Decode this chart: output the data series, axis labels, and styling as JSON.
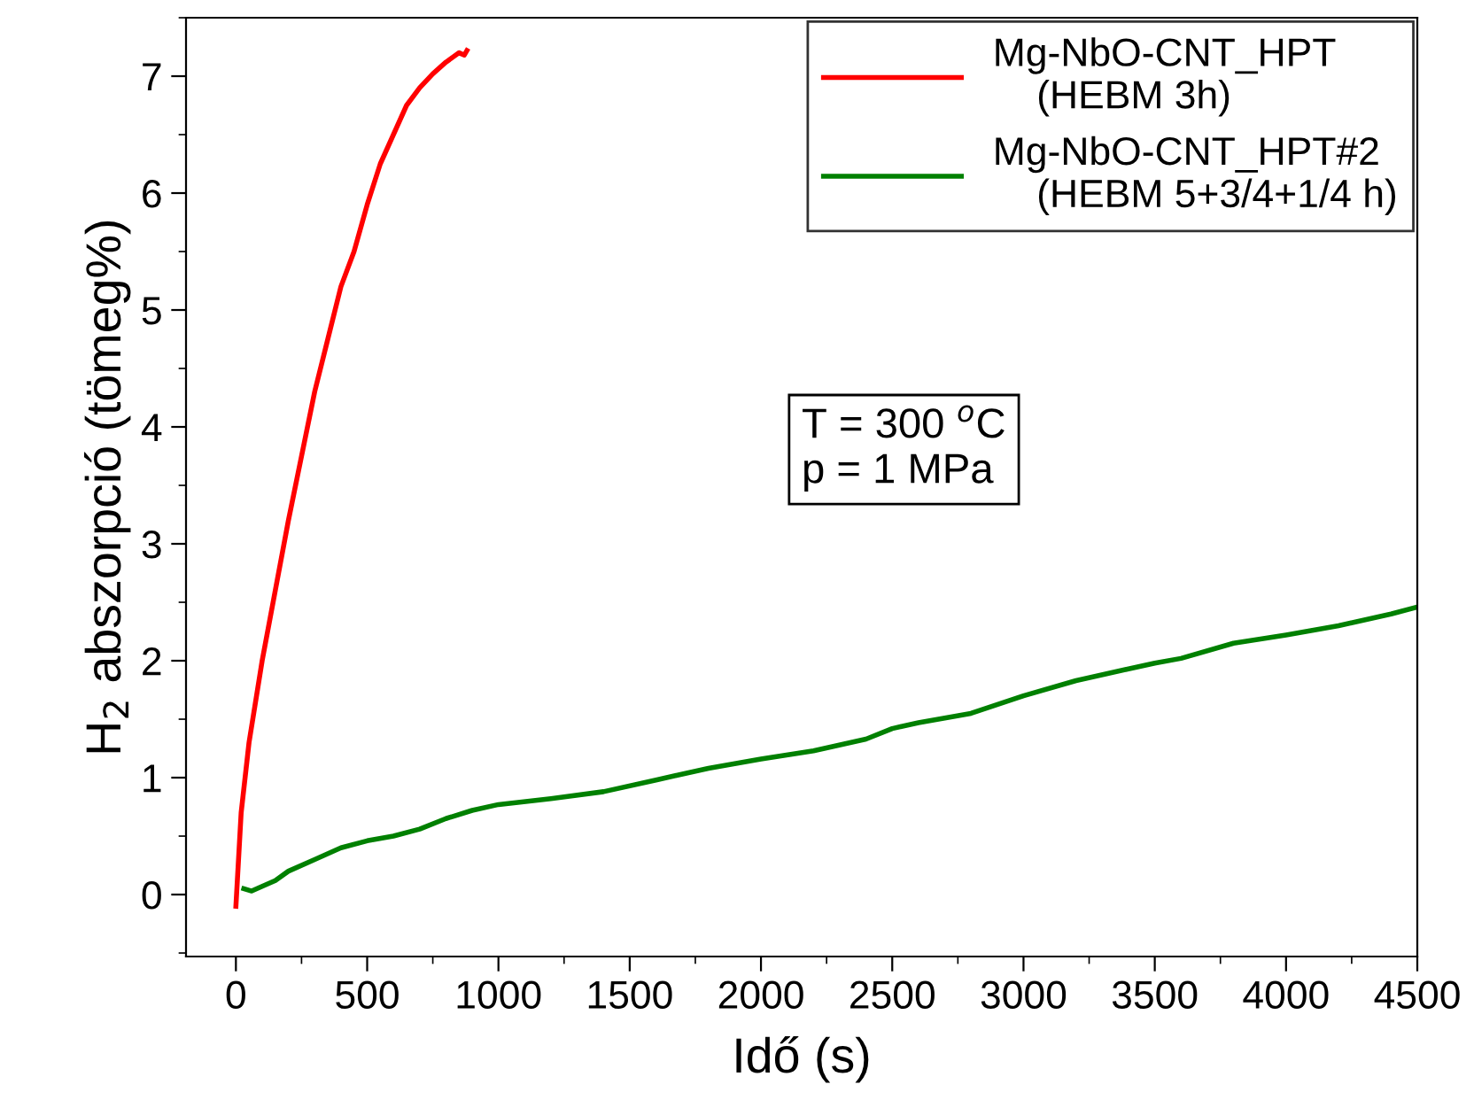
{
  "chart_data": {
    "type": "line",
    "xlabel": "Idő (s)",
    "ylabel": "H$_{2}$ abszorpció (tömeg%)",
    "series": [
      {
        "name": "Mg-NbO-CNT_HPT\n    (HEBM 3h)",
        "color": "#ff0000",
        "x": [
          0,
          20,
          50,
          100,
          150,
          200,
          250,
          300,
          350,
          400,
          450,
          500,
          550,
          600,
          650,
          700,
          750,
          800,
          850,
          870,
          880
        ],
        "values": [
          -0.1,
          0.7,
          1.3,
          2.0,
          2.6,
          3.2,
          3.75,
          4.3,
          4.75,
          5.2,
          5.5,
          5.9,
          6.25,
          6.5,
          6.75,
          6.9,
          7.02,
          7.12,
          7.2,
          7.18,
          7.22
        ]
      },
      {
        "name": "Mg-NbO-CNT_HPT#2\n    (HEBM 5+3/4+1/4 h)",
        "color": "#008000",
        "x": [
          30,
          60,
          100,
          150,
          200,
          300,
          400,
          500,
          600,
          700,
          800,
          900,
          1000,
          1200,
          1400,
          1600,
          1800,
          2000,
          2200,
          2400,
          2500,
          2600,
          2800,
          3000,
          3200,
          3400,
          3500,
          3600,
          3800,
          4000,
          4200,
          4400,
          4500
        ],
        "values": [
          0.05,
          0.03,
          0.07,
          0.12,
          0.2,
          0.3,
          0.4,
          0.46,
          0.5,
          0.56,
          0.65,
          0.72,
          0.77,
          0.82,
          0.88,
          0.98,
          1.08,
          1.16,
          1.23,
          1.33,
          1.42,
          1.47,
          1.55,
          1.7,
          1.83,
          1.93,
          1.98,
          2.02,
          2.15,
          2.22,
          2.3,
          2.4,
          2.46
        ]
      }
    ],
    "xlim": [
      -190,
      4500
    ],
    "ylim": [
      -0.53,
      7.5
    ],
    "xticks": [
      0,
      500,
      1000,
      1500,
      2000,
      2500,
      3000,
      3500,
      4000,
      4500
    ],
    "yticks": [
      0,
      1,
      2,
      3,
      4,
      5,
      6,
      7
    ],
    "annotations": [
      "T = 300 $^{o}$C\np = 1 MPa"
    ],
    "legend": "top right",
    "grid": false,
    "marker": "none",
    "line_style": "solid"
  }
}
